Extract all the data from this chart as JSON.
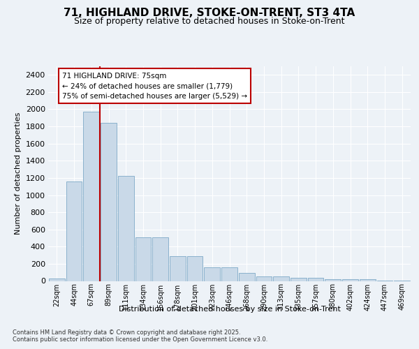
{
  "title": "71, HIGHLAND DRIVE, STOKE-ON-TRENT, ST3 4TA",
  "subtitle": "Size of property relative to detached houses in Stoke-on-Trent",
  "xlabel": "Distribution of detached houses by size in Stoke-on-Trent",
  "ylabel": "Number of detached properties",
  "annotation_title": "71 HIGHLAND DRIVE: 75sqm",
  "annotation_line1": "← 24% of detached houses are smaller (1,779)",
  "annotation_line2": "75% of semi-detached houses are larger (5,529) →",
  "vline_x": 2.5,
  "bar_color": "#c9d9e8",
  "bar_edge_color": "#6a9cbf",
  "vline_color": "#bb0000",
  "background_color": "#edf2f7",
  "grid_color": "#ffffff",
  "categories": [
    "22sqm",
    "44sqm",
    "67sqm",
    "89sqm",
    "111sqm",
    "134sqm",
    "156sqm",
    "178sqm",
    "201sqm",
    "223sqm",
    "246sqm",
    "268sqm",
    "290sqm",
    "313sqm",
    "335sqm",
    "357sqm",
    "380sqm",
    "402sqm",
    "424sqm",
    "447sqm",
    "469sqm"
  ],
  "values": [
    30,
    1160,
    1970,
    1840,
    1220,
    510,
    510,
    290,
    290,
    155,
    155,
    90,
    55,
    55,
    35,
    35,
    20,
    20,
    20,
    5,
    5
  ],
  "ylim": [
    0,
    2500
  ],
  "yticks": [
    0,
    200,
    400,
    600,
    800,
    1000,
    1200,
    1400,
    1600,
    1800,
    2000,
    2200,
    2400
  ],
  "footer1": "Contains HM Land Registry data © Crown copyright and database right 2025.",
  "footer2": "Contains public sector information licensed under the Open Government Licence v3.0."
}
